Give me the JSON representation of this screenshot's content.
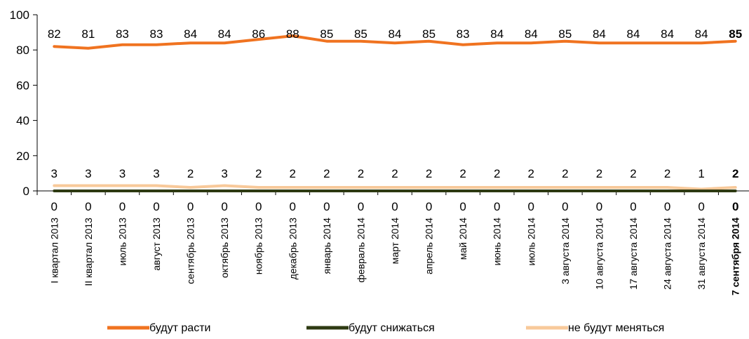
{
  "chart_data": {
    "type": "line",
    "categories": [
      "I квартал 2013",
      "II квартал 2013",
      "июль 2013",
      "август 2013",
      "сентябрь 2013",
      "октябрь 2013",
      "ноябрь 2013",
      "декабрь 2013",
      "январь 2014",
      "февраль 2014",
      "март 2014",
      "апрель 2014",
      "май 2014",
      "июнь 2014",
      "июль 2014",
      "3 августа 2014",
      "10 августа 2014",
      "17 августа 2014",
      "24 августа 2014",
      "31 августа 2014",
      "7 сентября 2014"
    ],
    "highlight_category_index": 20,
    "series": [
      {
        "name": "будут расти",
        "color": "#F07320",
        "values": [
          82,
          81,
          83,
          83,
          84,
          84,
          86,
          88,
          85,
          85,
          84,
          85,
          83,
          84,
          84,
          85,
          84,
          84,
          84,
          84,
          85
        ]
      },
      {
        "name": "будут снижаться",
        "color": "#2E3A12",
        "values": [
          0,
          0,
          0,
          0,
          0,
          0,
          0,
          0,
          0,
          0,
          0,
          0,
          0,
          0,
          0,
          0,
          0,
          0,
          0,
          0,
          0
        ]
      },
      {
        "name": "не будут меняться",
        "color": "#F8C99A",
        "values": [
          3,
          3,
          3,
          3,
          2,
          3,
          2,
          2,
          2,
          2,
          2,
          2,
          2,
          2,
          2,
          2,
          2,
          2,
          2,
          1,
          2
        ]
      }
    ],
    "ylim": [
      0,
      100
    ],
    "yticks": [
      0,
      20,
      40,
      60,
      80,
      100
    ],
    "grid": false,
    "legend_position": "bottom",
    "title": "",
    "xlabel": "",
    "ylabel": ""
  }
}
